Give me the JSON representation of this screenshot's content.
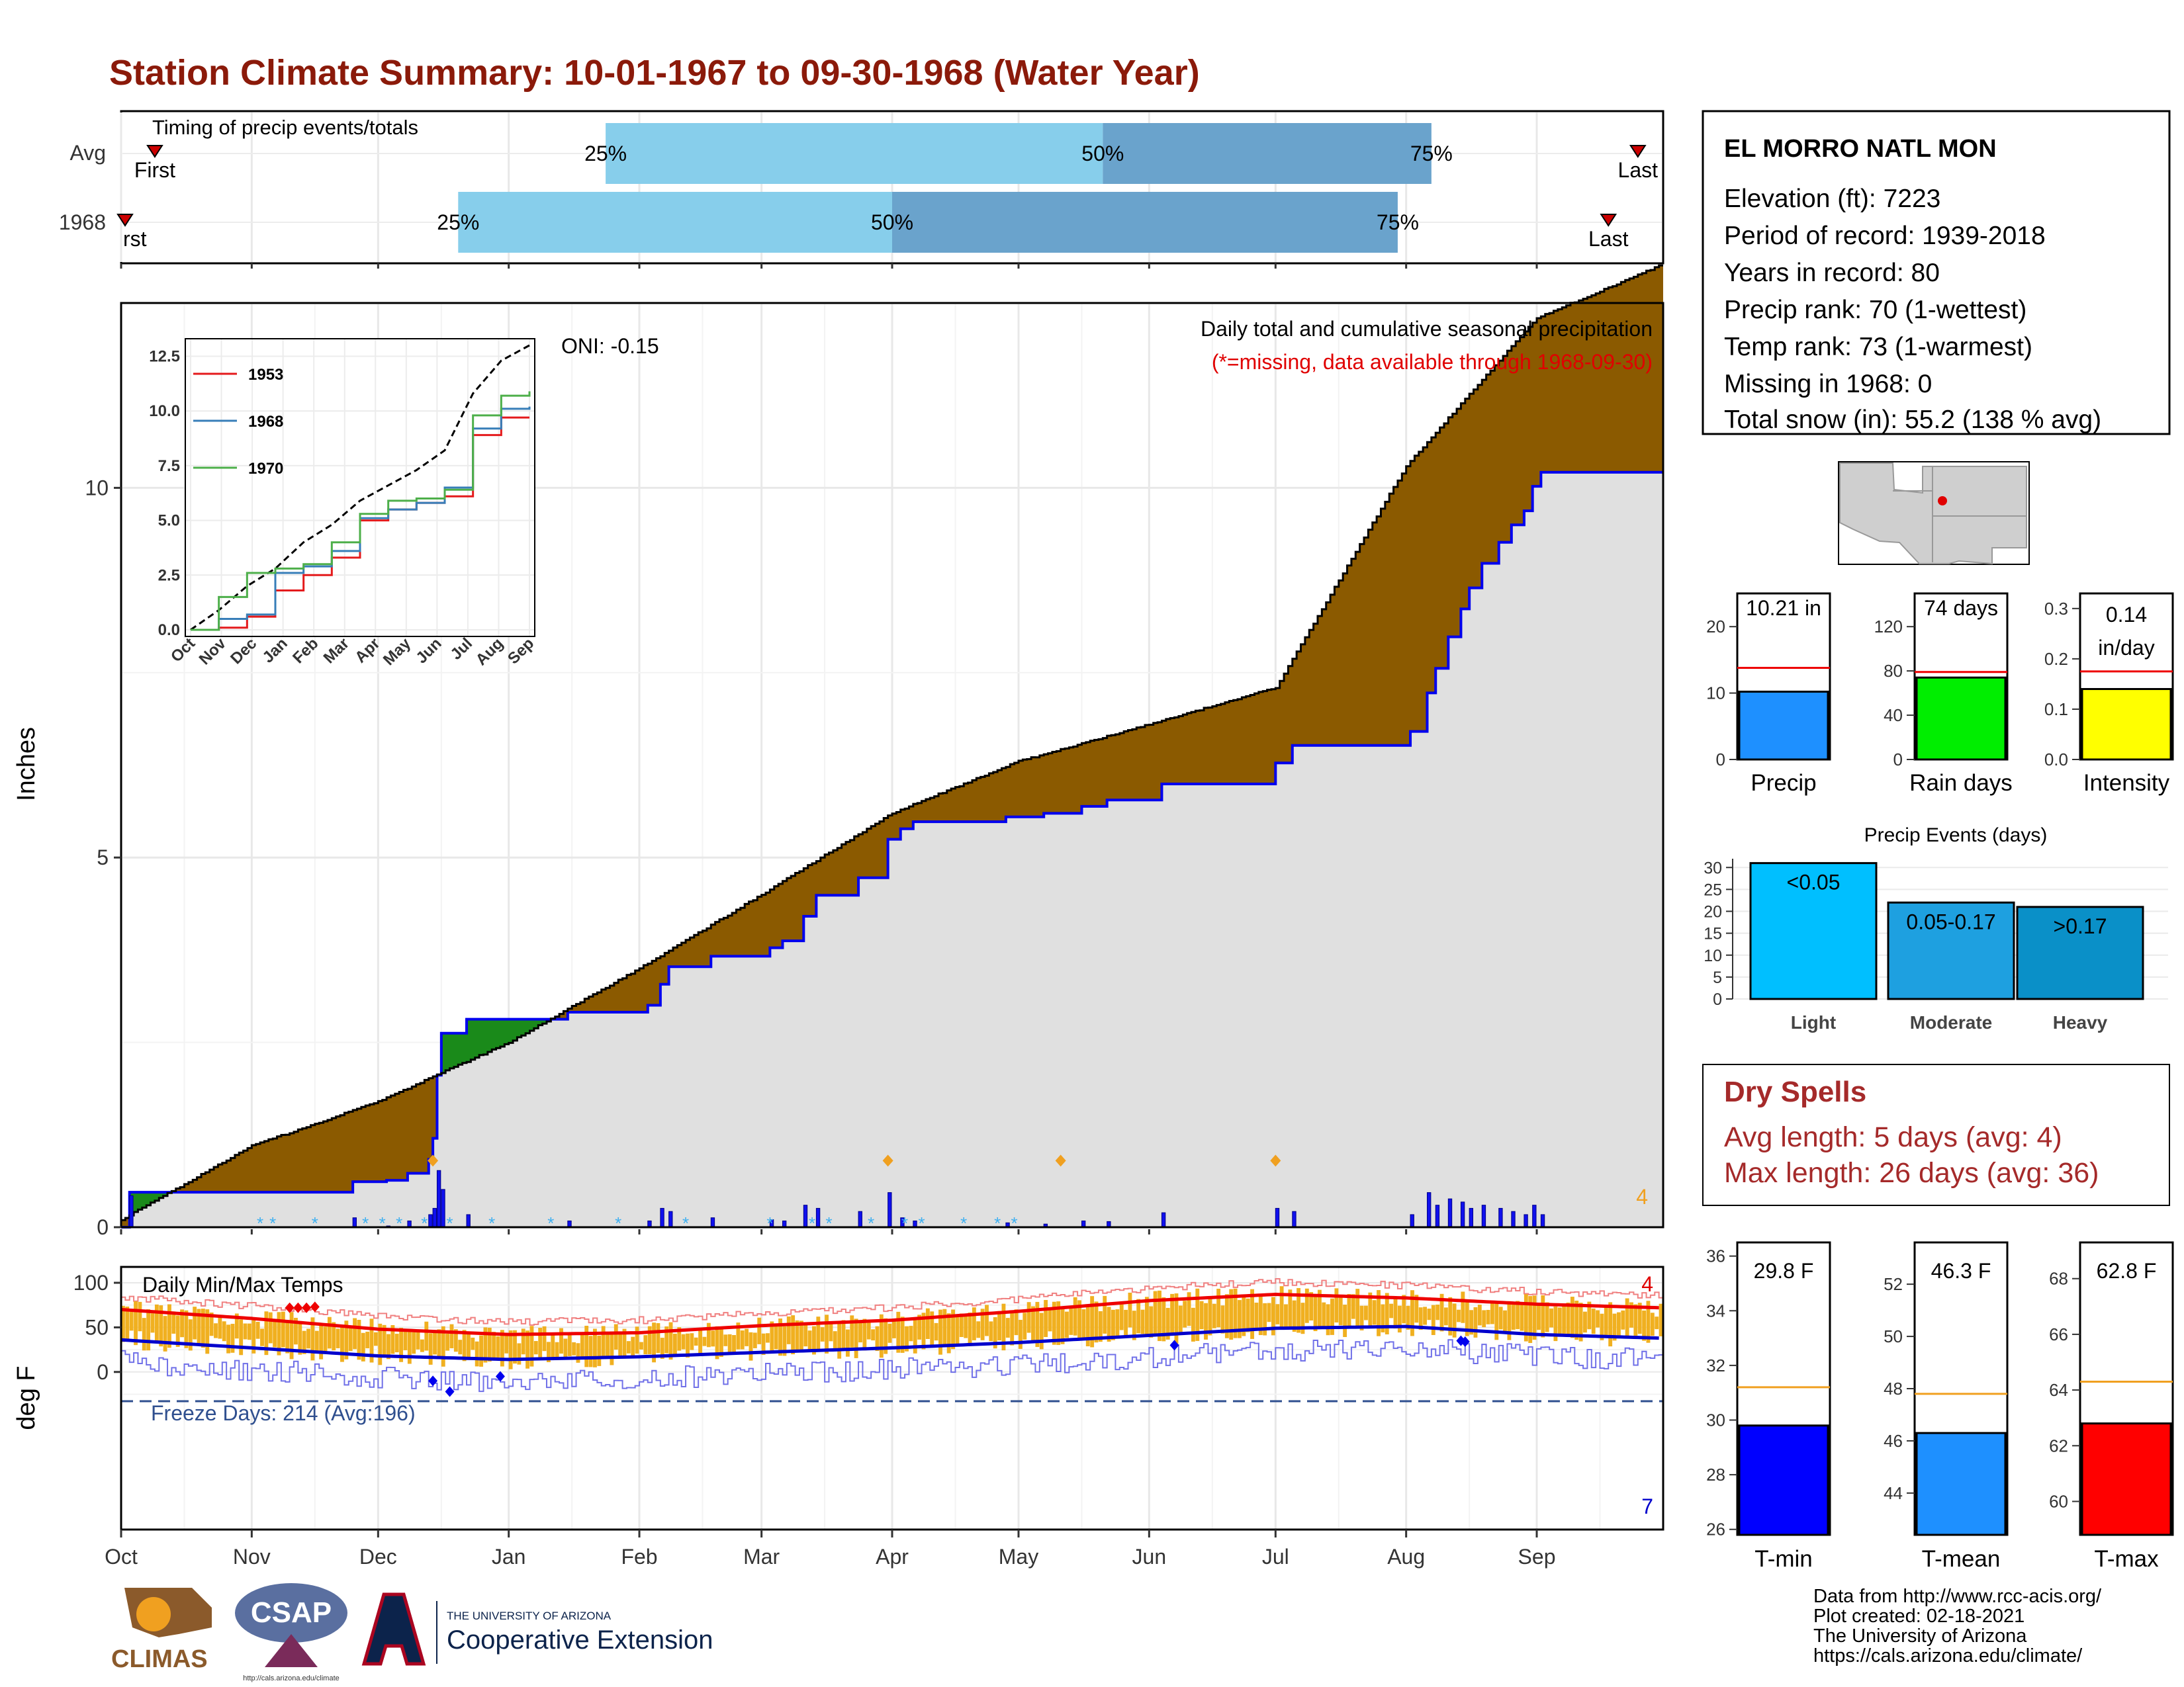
{
  "title": "Station Climate Summary: 10-01-1967 to 09-30-1968 (Water Year)",
  "colors": {
    "title": "#8b1a0a",
    "quartile_light": "#87ceeb",
    "quartile_dark": "#6aa3cc",
    "avg_cum_fill": "#8b5a00",
    "excess_fill": "#1a8a1a",
    "obs_fill": "#e0e0e0",
    "obs_line": "#0000ee",
    "tmax_line": "#ee0000",
    "tmin_line": "#0000cc",
    "temp_bar": "#f0b020",
    "avg_ref_line": "#f0a020"
  },
  "timing": {
    "panel_title": "Timing of precip events/totals",
    "rows": [
      {
        "label": "Avg",
        "first_label": "First",
        "last_label": "Last",
        "first_day": 8,
        "last_day": 360,
        "q25_label": "25%",
        "q50_label": "50%",
        "q75_label": "75%",
        "q25_day": 115,
        "q50_day": 233,
        "q75_day": 311
      },
      {
        "label": "1968",
        "first_label": "First",
        "last_label": "Last",
        "first_day": 0,
        "last_day": 353,
        "q25_label": "25%",
        "q50_label": "50%",
        "q75_label": "75%",
        "q25_day": 80,
        "q50_day": 183,
        "q75_day": 303
      }
    ]
  },
  "info": {
    "station": "EL MORRO NATL MON",
    "lines": [
      "Elevation (ft): 7223",
      "Period of record: 1939-2018",
      "Years in record: 80",
      "Precip rank: 70 (1-wettest)",
      "Temp rank: 73 (1-warmest)",
      "Missing in 1968: 0",
      "Total snow (in): 55.2 (138 % avg)"
    ]
  },
  "precip_panel": {
    "oni": "ONI: -0.15",
    "subtitle": "Daily total and cumulative seasonal precipitation",
    "missing_note": "(*=missing, data available through 1968-09-30)",
    "corner_count": "4",
    "ylabel": "Inches"
  },
  "inset": {
    "series": [
      {
        "name": "1953",
        "color": "#e41a1c"
      },
      {
        "name": "1968",
        "color": "#377eb8"
      },
      {
        "name": "1970",
        "color": "#4daf4a"
      }
    ],
    "yticks": [
      "0.0",
      "2.5",
      "5.0",
      "7.5",
      "10.0",
      "12.5"
    ],
    "months": [
      "Oct",
      "Nov",
      "Dec",
      "Jan",
      "Feb",
      "Mar",
      "Apr",
      "May",
      "Jun",
      "Jul",
      "Aug",
      "Sep"
    ]
  },
  "temp_panel": {
    "title": "Daily Min/Max Temps",
    "freeze": "Freeze Days: 214 (Avg:196)",
    "ylabel": "deg F",
    "yticks": [
      "100",
      "50",
      "0"
    ],
    "top_count": "4",
    "bottom_count": "7"
  },
  "months": [
    "Oct",
    "Nov",
    "Dec",
    "Jan",
    "Feb",
    "Mar",
    "Apr",
    "May",
    "Jun",
    "Jul",
    "Aug",
    "Sep"
  ],
  "precip_yticks": [
    "0",
    "5",
    "10"
  ],
  "precip_bars": [
    {
      "label": "Precip",
      "value_label": "10.21 in",
      "ticks": [
        "0",
        "10",
        "20"
      ]
    },
    {
      "label": "Rain days",
      "value_label": "74 days",
      "ticks": [
        "0",
        "40",
        "80",
        "120"
      ]
    },
    {
      "label": "Intensity",
      "value_label": "0.14\nin/day",
      "ticks": [
        "0.0",
        "0.1",
        "0.2",
        "0.3"
      ]
    }
  ],
  "events": {
    "title": "Precip Events (days)",
    "ticks": [
      "0",
      "5",
      "10",
      "15",
      "20",
      "25",
      "30"
    ],
    "categories": [
      "Light",
      "Moderate",
      "Heavy"
    ],
    "bar_labels": [
      "<0.05",
      "0.05-0.17",
      ">0.17"
    ]
  },
  "dry_spells": {
    "title": "Dry Spells",
    "avg": "Avg length: 5 days (avg: 4)",
    "max": "Max length: 26 days (avg: 36)"
  },
  "temp_bars": [
    {
      "label": "T-min",
      "value_label": "29.8 F",
      "ticks": [
        "26",
        "28",
        "30",
        "32",
        "34",
        "36"
      ]
    },
    {
      "label": "T-mean",
      "value_label": "46.3 F",
      "ticks": [
        "44",
        "46",
        "48",
        "50",
        "52"
      ]
    },
    {
      "label": "T-max",
      "value_label": "62.8 F",
      "ticks": [
        "60",
        "62",
        "64",
        "66",
        "68"
      ]
    }
  ],
  "credits": [
    "Data from http://www.rcc-acis.org/",
    "Plot created: 02-18-2021",
    "The University of Arizona",
    "https://cals.arizona.edu/climate/"
  ],
  "logos": {
    "climas": "CLIMAS",
    "csap": "CSAP",
    "csap_url": "http://cals.arizona.edu/climate",
    "ua_small": "THE UNIVERSITY OF ARIZONA",
    "ua_big": "Cooperative Extension"
  },
  "chart_data": [
    {
      "type": "line",
      "title": "Daily total and cumulative seasonal precipitation",
      "ylabel": "Inches",
      "ylim": [
        0,
        13
      ],
      "x": [
        "Oct",
        "Nov",
        "Dec",
        "Jan",
        "Feb",
        "Mar",
        "Apr",
        "May",
        "Jun",
        "Jul",
        "Aug",
        "Sep",
        "Sep 30"
      ],
      "series": [
        {
          "values": [
            0.1,
            1.1,
            1.7,
            2.5,
            3.5,
            4.5,
            5.6,
            6.3,
            6.8,
            7.3,
            10.3,
            12.3,
            13.0
          ]
        },
        {
          "values": [
            0.5,
            0.5,
            0.7,
            2.6,
            3.0,
            3.6,
            5.1,
            5.5,
            5.8,
            6.1,
            9.4,
            10.2,
            10.21
          ]
        }
      ]
    },
    {
      "type": "line",
      "title": "Daily Min/Max Temps",
      "ylabel": "deg F",
      "ylim": [
        -40,
        105
      ],
      "x": [
        "Oct",
        "Nov",
        "Dec",
        "Jan",
        "Feb",
        "Mar",
        "Apr",
        "May",
        "Jun",
        "Jul",
        "Aug",
        "Sep"
      ],
      "series": [
        {
          "values": [
            70,
            60,
            48,
            42,
            44,
            52,
            58,
            68,
            80,
            87,
            83,
            76
          ]
        },
        {
          "values": [
            36,
            27,
            18,
            14,
            17,
            22,
            27,
            33,
            41,
            49,
            51,
            42
          ]
        }
      ]
    },
    {
      "type": "bar",
      "categories": [
        "Precip",
        "Rain days",
        "Intensity"
      ],
      "values": [
        10.21,
        74,
        0.14
      ],
      "ylims": [
        [
          0,
          25
        ],
        [
          0,
          150
        ],
        [
          0,
          0.33
        ]
      ],
      "averages": [
        13.8,
        79,
        0.175
      ]
    },
    {
      "type": "bar",
      "title": "Precip Events (days)",
      "categories": [
        "Light",
        "Moderate",
        "Heavy"
      ],
      "values": [
        31,
        22,
        21
      ],
      "ylim": [
        0,
        32
      ]
    },
    {
      "type": "bar",
      "categories": [
        "T-min",
        "T-mean",
        "T-max"
      ],
      "values": [
        29.8,
        46.3,
        62.8
      ],
      "ylims": [
        [
          25.8,
          36.5
        ],
        [
          42.4,
          53.6
        ],
        [
          58.8,
          69.3
        ]
      ],
      "averages": [
        31.2,
        47.8,
        64.3
      ]
    }
  ]
}
